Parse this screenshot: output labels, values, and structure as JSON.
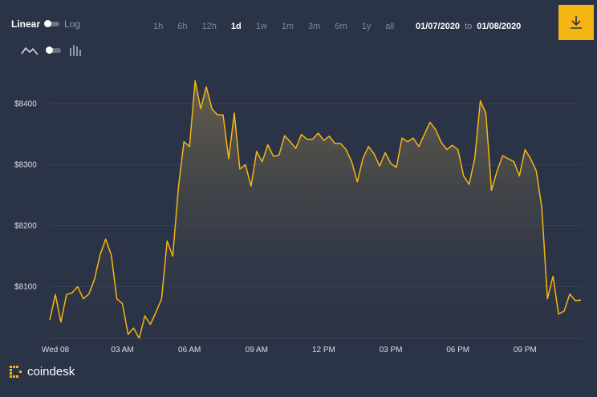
{
  "scale": {
    "linear_label": "Linear",
    "log_label": "Log",
    "selected": "Linear"
  },
  "view": {
    "line_icon": "line-chart-icon",
    "bar_icon": "bar-chart-icon",
    "selected": "line"
  },
  "ranges": [
    {
      "label": "1h",
      "active": false
    },
    {
      "label": "6h",
      "active": false
    },
    {
      "label": "12h",
      "active": false
    },
    {
      "label": "1d",
      "active": true
    },
    {
      "label": "1w",
      "active": false
    },
    {
      "label": "1m",
      "active": false
    },
    {
      "label": "3m",
      "active": false
    },
    {
      "label": "6m",
      "active": false
    },
    {
      "label": "1y",
      "active": false
    },
    {
      "label": "all",
      "active": false
    }
  ],
  "date_range": {
    "from": "01/07/2020",
    "separator": "to",
    "to": "01/08/2020"
  },
  "download": {
    "icon": "download-icon",
    "color": "#f5b614"
  },
  "brand": {
    "name": "coindesk",
    "logo_icon": "coindesk-logo-icon",
    "logo_color": "#f5b614"
  },
  "colors": {
    "line": "#f5b614",
    "background": "#2b3346",
    "grid": "#3c4457"
  },
  "chart_data": {
    "type": "area",
    "ylim": [
      8015,
      8460
    ],
    "xlim": [
      0,
      23.5
    ],
    "y_ticks": [
      {
        "value": 8100,
        "label": "$8100"
      },
      {
        "value": 8200,
        "label": "$8200"
      },
      {
        "value": 8300,
        "label": "$8300"
      },
      {
        "value": 8400,
        "label": "$8400"
      }
    ],
    "x_ticks": [
      {
        "value": 0,
        "label": "Wed 08"
      },
      {
        "value": 3,
        "label": "03 AM"
      },
      {
        "value": 6,
        "label": "06 AM"
      },
      {
        "value": 9,
        "label": "09 AM"
      },
      {
        "value": 12,
        "label": "12 PM"
      },
      {
        "value": 15,
        "label": "03 PM"
      },
      {
        "value": 18,
        "label": "06 PM"
      },
      {
        "value": 21,
        "label": "09 PM"
      }
    ],
    "grid": true,
    "series": [
      {
        "x": [
          -0.25,
          0,
          0.25,
          0.5,
          0.75,
          1,
          1.25,
          1.5,
          1.75,
          2,
          2.25,
          2.5,
          2.75,
          3,
          3.25,
          3.5,
          3.75,
          4,
          4.25,
          4.5,
          4.75,
          5,
          5.25,
          5.5,
          5.75,
          6,
          6.25,
          6.5,
          6.75,
          7,
          7.25,
          7.5,
          7.75,
          8,
          8.25,
          8.5,
          8.75,
          9,
          9.25,
          9.5,
          9.75,
          10,
          10.25,
          10.5,
          10.75,
          11,
          11.25,
          11.5,
          11.75,
          12,
          12.25,
          12.5,
          12.75,
          13,
          13.25,
          13.5,
          13.75,
          14,
          14.25,
          14.5,
          14.75,
          15,
          15.25,
          15.5,
          15.75,
          16,
          16.25,
          16.5,
          16.75,
          17,
          17.25,
          17.5,
          17.75,
          18,
          18.25,
          18.5,
          18.75,
          19,
          19.25,
          19.5,
          19.75,
          20,
          20.25,
          20.5,
          20.75,
          21,
          21.25,
          21.5,
          21.75,
          22,
          22.25,
          22.5,
          22.75,
          23,
          23.25,
          23.5
        ],
        "values": [
          8045,
          8087,
          8042,
          8087,
          8090,
          8100,
          8080,
          8088,
          8112,
          8152,
          8178,
          8152,
          8080,
          8072,
          8022,
          8032,
          8015,
          8052,
          8038,
          8058,
          8080,
          8175,
          8150,
          8262,
          8338,
          8330,
          8438,
          8392,
          8428,
          8392,
          8382,
          8382,
          8310,
          8385,
          8293,
          8300,
          8265,
          8322,
          8305,
          8333,
          8314,
          8316,
          8348,
          8338,
          8327,
          8350,
          8342,
          8342,
          8352,
          8340,
          8347,
          8335,
          8335,
          8325,
          8305,
          8272,
          8310,
          8330,
          8318,
          8298,
          8320,
          8302,
          8296,
          8344,
          8338,
          8344,
          8330,
          8350,
          8370,
          8358,
          8337,
          8325,
          8332,
          8325,
          8282,
          8268,
          8310,
          8405,
          8385,
          8258,
          8290,
          8315,
          8310,
          8305,
          8282,
          8325,
          8310,
          8290,
          8230,
          8080,
          8117,
          8055,
          8060,
          8088,
          8077,
          8078
        ]
      }
    ]
  }
}
